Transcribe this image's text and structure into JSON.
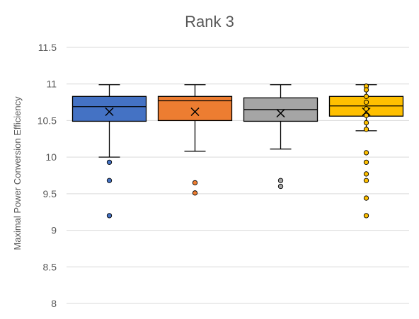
{
  "chart_data": {
    "type": "box",
    "title": "Rank 3",
    "xlabel": "",
    "ylabel": "Maximal Power Conversion Efficiency",
    "ylim": [
      8,
      11.5
    ],
    "yticks": [
      "8",
      "8.5",
      "9",
      "9.5",
      "10",
      "10.5",
      "11",
      "11.5"
    ],
    "grid": true,
    "legend": "none",
    "series": [
      {
        "color": "#4472C4",
        "min": 10.0,
        "q1": 10.49,
        "median": 10.69,
        "q3": 10.83,
        "max": 10.99,
        "mean": 10.62,
        "outliers": [
          9.93,
          9.68,
          9.2
        ]
      },
      {
        "color": "#ED7D31",
        "min": 10.08,
        "q1": 10.5,
        "median": 10.77,
        "q3": 10.83,
        "max": 10.99,
        "mean": 10.62,
        "outliers": [
          9.65,
          9.51
        ]
      },
      {
        "color": "#A5A5A5",
        "min": 10.11,
        "q1": 10.49,
        "median": 10.65,
        "q3": 10.81,
        "max": 10.99,
        "mean": 10.6,
        "outliers": [
          9.68,
          9.6
        ]
      },
      {
        "color": "#FFC000",
        "min": 10.36,
        "q1": 10.56,
        "median": 10.7,
        "q3": 10.83,
        "max": 10.99,
        "mean": 10.62,
        "outliers": [
          10.97,
          10.92,
          10.83,
          10.75,
          10.66,
          10.57,
          10.47,
          10.38,
          10.06,
          9.93,
          9.77,
          9.68,
          9.44,
          9.2
        ]
      }
    ]
  }
}
